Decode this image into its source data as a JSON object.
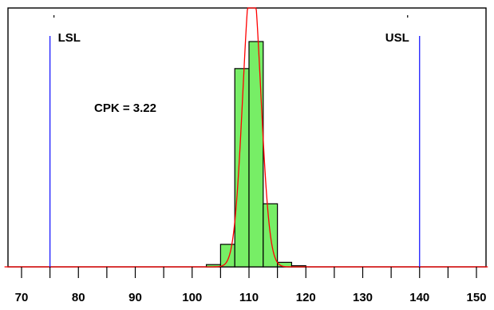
{
  "chart_data": {
    "type": "bar",
    "title": "",
    "xlabel": "",
    "ylabel": "",
    "xlim": [
      67,
      152
    ],
    "ylim": [
      0,
      100
    ],
    "grid": false,
    "x_ticks": [
      70,
      80,
      90,
      100,
      110,
      120,
      130,
      140,
      150
    ],
    "x_tick_labels": [
      "70",
      "80",
      "90",
      "100",
      "110",
      "120",
      "130",
      "140",
      "150"
    ],
    "bins": [
      {
        "from": 102.5,
        "to": 105,
        "value": 1
      },
      {
        "from": 105,
        "to": 107.5,
        "value": 10
      },
      {
        "from": 107.5,
        "to": 110,
        "value": 88
      },
      {
        "from": 110,
        "to": 112.5,
        "value": 100
      },
      {
        "from": 112.5,
        "to": 115,
        "value": 28
      },
      {
        "from": 115,
        "to": 117.5,
        "value": 2
      },
      {
        "from": 117.5,
        "to": 120,
        "value": 0.5
      }
    ],
    "fit_curve": {
      "type": "normal",
      "mean": 110.5,
      "sd": 1.55,
      "peak": 130,
      "color": "#ff0000"
    },
    "spec_limits": [
      {
        "label": "LSL",
        "value": 75,
        "color": "#1a1aff"
      },
      {
        "label": "USL",
        "value": 140,
        "color": "#1a1aff"
      }
    ],
    "annotation": {
      "text": "CPK = 3.22"
    },
    "bar_color": "#77ee66"
  }
}
